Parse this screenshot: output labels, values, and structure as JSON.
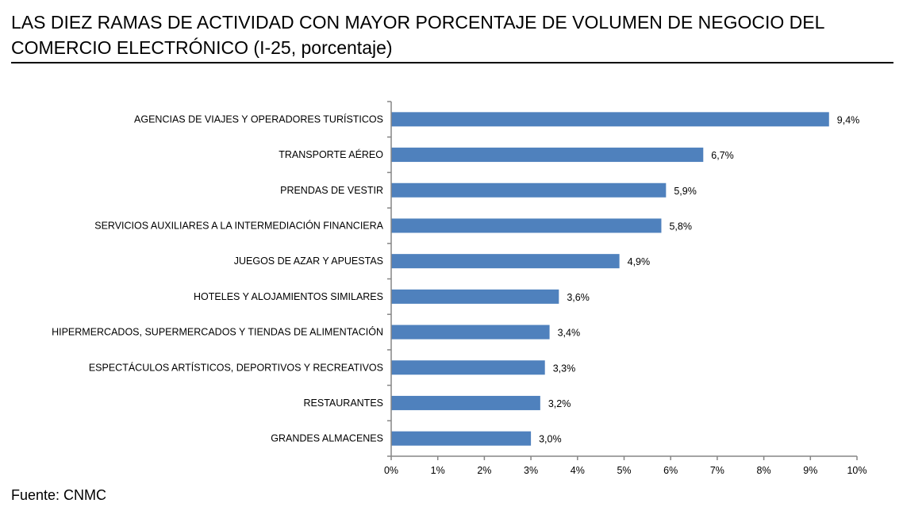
{
  "chart_data": {
    "type": "bar",
    "orientation": "horizontal",
    "title": "LAS DIEZ RAMAS DE ACTIVIDAD CON MAYOR PORCENTAJE DE VOLUMEN DE NEGOCIO DEL COMERCIO ELECTRÓNICO (I-25, porcentaje)",
    "categories": [
      "AGENCIAS DE VIAJES Y OPERADORES TURÍSTICOS",
      "TRANSPORTE AÉREO",
      "PRENDAS DE VESTIR",
      "SERVICIOS AUXILIARES A LA INTERMEDIACIÓN FINANCIERA",
      "JUEGOS DE AZAR Y APUESTAS",
      "HOTELES  Y ALOJAMIENTOS SIMILARES",
      "HIPERMERCADOS, SUPERMERCADOS Y TIENDAS DE ALIMENTACIÓN",
      "ESPECTÁCULOS ARTÍSTICOS, DEPORTIVOS Y RECREATIVOS",
      "RESTAURANTES",
      "GRANDES ALMACENES"
    ],
    "values": [
      9.4,
      6.7,
      5.9,
      5.8,
      4.9,
      3.6,
      3.4,
      3.3,
      3.2,
      3.0
    ],
    "data_labels": [
      "9,4%",
      "6,7%",
      "5,9%",
      "5,8%",
      "4,9%",
      "3,6%",
      "3,4%",
      "3,3%",
      "3,2%",
      "3,0%"
    ],
    "xlim": [
      0,
      10
    ],
    "x_ticks": [
      "0%",
      "1%",
      "2%",
      "3%",
      "4%",
      "5%",
      "6%",
      "7%",
      "8%",
      "9%",
      "10%"
    ],
    "grid": false,
    "legend": "none",
    "bar_color": "#4f81bd",
    "axis_color": "#868686"
  },
  "source": "Fuente: CNMC"
}
